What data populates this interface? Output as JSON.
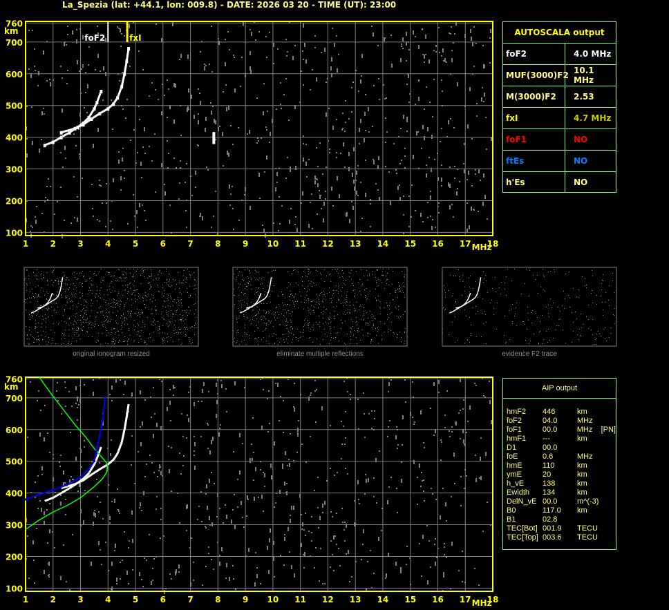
{
  "title": "La_Spezia (lat: +44.1, lon: 009.8) - DATE: 2026 03 20 - TIME (UT): 23:00",
  "chart_data": [
    {
      "type": "scatter",
      "name_hint": "ionogram",
      "xlim": [
        1,
        18
      ],
      "ylim": [
        90,
        765
      ],
      "x_ticks": [
        "1",
        "2",
        "3",
        "4",
        "5",
        "6",
        "7",
        "8",
        "9",
        "10",
        "11",
        "12",
        "13",
        "14",
        "15",
        "16",
        "17",
        "18"
      ],
      "y_ticks": [
        "100",
        "200",
        "300",
        "400",
        "500",
        "600",
        "700",
        "760"
      ],
      "xunit": "MHz",
      "yunit": "km",
      "grid": true,
      "markers": [
        {
          "label": "foF2",
          "freq": 4.0,
          "color": "#ffffff"
        },
        {
          "label": "fxI",
          "freq": 4.7,
          "color": "#ffff00"
        }
      ],
      "o_trace": [
        [
          1.7,
          375
        ],
        [
          2.0,
          385
        ],
        [
          2.3,
          400
        ],
        [
          2.6,
          415
        ],
        [
          2.9,
          432
        ],
        [
          3.1,
          445
        ],
        [
          3.3,
          462
        ],
        [
          3.5,
          490
        ],
        [
          3.6,
          510
        ],
        [
          3.75,
          545
        ]
      ],
      "x_trace": [
        [
          2.3,
          415
        ],
        [
          2.8,
          428
        ],
        [
          3.1,
          440
        ],
        [
          3.4,
          458
        ],
        [
          3.7,
          475
        ],
        [
          4.0,
          490
        ],
        [
          4.2,
          505
        ],
        [
          4.35,
          525
        ],
        [
          4.5,
          560
        ],
        [
          4.6,
          600
        ],
        [
          4.68,
          640
        ],
        [
          4.75,
          680
        ]
      ],
      "spread": [
        [
          7.85,
          385
        ],
        [
          7.85,
          395
        ],
        [
          7.85,
          405
        ],
        [
          7.85,
          412
        ]
      ]
    },
    {
      "type": "scatter",
      "name_hint": "aip",
      "xlim": [
        1,
        18
      ],
      "ylim": [
        90,
        765
      ],
      "profile": [
        [
          1.0,
          285
        ],
        [
          1.5,
          315
        ],
        [
          2.0,
          340
        ],
        [
          2.5,
          360
        ],
        [
          3.0,
          385
        ],
        [
          3.5,
          420
        ],
        [
          3.8,
          445
        ],
        [
          3.95,
          465
        ],
        [
          4.0,
          480
        ],
        [
          3.95,
          495
        ],
        [
          3.8,
          510
        ],
        [
          3.5,
          540
        ],
        [
          3.2,
          575
        ],
        [
          2.8,
          615
        ],
        [
          2.4,
          660
        ],
        [
          2.0,
          705
        ],
        [
          1.7,
          740
        ],
        [
          1.5,
          765
        ]
      ],
      "fitted": [
        [
          1.0,
          380
        ],
        [
          1.5,
          395
        ],
        [
          2.0,
          410
        ],
        [
          2.5,
          425
        ],
        [
          3.0,
          450
        ],
        [
          3.3,
          475
        ],
        [
          3.5,
          500
        ],
        [
          3.55,
          520
        ],
        [
          3.6,
          545
        ],
        [
          3.7,
          580
        ],
        [
          3.8,
          630
        ],
        [
          3.9,
          700
        ]
      ]
    }
  ],
  "autoscala": {
    "header": "AUTOSCALA output",
    "rows": [
      {
        "k": "foF2",
        "v": "4.0 MHz",
        "color": "#ffffff",
        "vcolor": "#ffffff"
      },
      {
        "k": "MUF(3000)F2",
        "v": "10.1 MHz",
        "color": "#ffff80",
        "vcolor": "#ffff80"
      },
      {
        "k": "M(3000)F2",
        "v": "2.53",
        "color": "#ffff80",
        "vcolor": "#ffff80"
      },
      {
        "k": "fxI",
        "v": "4.7 MHz",
        "color": "#ffff00",
        "vcolor": "#c8c800"
      },
      {
        "k": "foF1",
        "v": "NO",
        "color": "#ff0000",
        "vcolor": "#ff0000"
      },
      {
        "k": "ftEs",
        "v": "NO",
        "color": "#0080ff",
        "vcolor": "#0080ff"
      },
      {
        "k": "h'Es",
        "v": "NO",
        "color": "#ffff80",
        "vcolor": "#ffff80"
      }
    ]
  },
  "aip": {
    "header": "AIP output",
    "rows": [
      [
        "hmF2",
        "446",
        "km"
      ],
      [
        "foF2",
        "04.0",
        "MHz"
      ],
      [
        "foF1",
        "00.0",
        "MHz    [PN]"
      ],
      [
        "hmF1",
        "---",
        "km"
      ],
      [
        "D1",
        "00.0",
        ""
      ],
      [
        "foE",
        "0.6",
        "MHz"
      ],
      [
        "hmE",
        "110",
        "km"
      ],
      [
        "ymE",
        "20",
        "km"
      ],
      [
        "h_vE",
        "138",
        "km"
      ],
      [
        "Ewidth",
        "134",
        "km"
      ],
      [
        "DelN_vE",
        "00.0",
        "m^(-3)"
      ],
      [
        "B0",
        "117.0",
        "km"
      ],
      [
        "B1",
        "02.8",
        ""
      ],
      [
        "TEC[Bot]",
        "001.9",
        "TECU"
      ],
      [
        "TEC[Top]",
        "003.6",
        "TECU"
      ]
    ]
  },
  "thumbnails": [
    "original ionogram resized",
    "eliminate multiple reflections",
    "evidence F2 trace"
  ],
  "colors": {
    "axis": "#ffff00",
    "grid": "#808080",
    "trace": "#ffffff",
    "profile": "#00ff00",
    "fit": "#0000ff"
  }
}
